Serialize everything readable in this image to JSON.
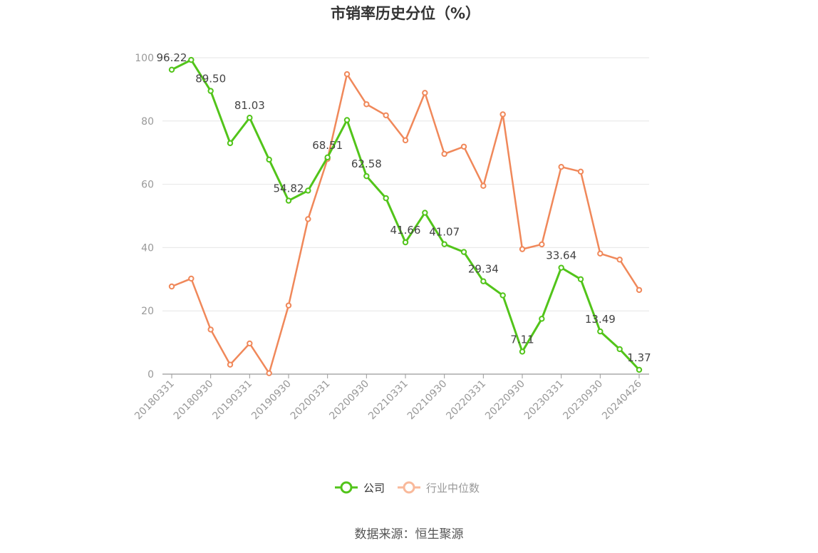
{
  "chart_data": {
    "type": "line",
    "title": "市销率历史分位（%）",
    "xlabel": "",
    "ylabel": "",
    "ylim": [
      0,
      100
    ],
    "yticks": [
      0,
      20,
      40,
      60,
      80,
      100
    ],
    "grid": true,
    "legend_position": "bottom",
    "x": [
      "20180331",
      "20180630",
      "20180930",
      "20181231",
      "20190331",
      "20190630",
      "20190930",
      "20191231",
      "20200331",
      "20200630",
      "20200930",
      "20201231",
      "20210331",
      "20210630",
      "20210930",
      "20211231",
      "20220331",
      "20220630",
      "20220930",
      "20221231",
      "20230331",
      "20230630",
      "20230930",
      "20231231",
      "20240426"
    ],
    "x_tick_labels": [
      "20180331",
      "20180930",
      "20190331",
      "20190930",
      "20200331",
      "20200930",
      "20210331",
      "20210930",
      "20220331",
      "20220930",
      "20230331",
      "20230930",
      "20240426"
    ],
    "series": [
      {
        "name": "公司",
        "color": "#52c41a",
        "values": [
          96.22,
          99.3,
          89.5,
          73.0,
          81.03,
          67.8,
          54.82,
          58.0,
          68.51,
          80.3,
          62.58,
          55.6,
          41.66,
          51.0,
          41.07,
          38.6,
          29.34,
          24.9,
          7.11,
          17.5,
          33.64,
          30.0,
          13.49,
          7.9,
          1.37
        ],
        "labels": [
          "96.22",
          "",
          "89.50",
          "",
          "81.03",
          "",
          "54.82",
          "",
          "68.51",
          "",
          "62.58",
          "",
          "41.66",
          "",
          "41.07",
          "",
          "29.34",
          "",
          "7.11",
          "",
          "33.64",
          "",
          "13.49",
          "",
          "1.37"
        ]
      },
      {
        "name": "行业中位数",
        "color": "#f0885a",
        "values": [
          27.7,
          30.2,
          14.1,
          3.0,
          9.7,
          0.3,
          21.7,
          49.0,
          68.0,
          94.8,
          85.3,
          81.8,
          73.9,
          88.9,
          69.6,
          71.9,
          59.5,
          82.1,
          39.5,
          41.0,
          65.5,
          64.0,
          38.1,
          36.2,
          26.6
        ]
      }
    ]
  },
  "legend": {
    "company_label": "公司",
    "industry_label": "行业中位数"
  },
  "footer": {
    "source": "数据来源：恒生聚源"
  }
}
